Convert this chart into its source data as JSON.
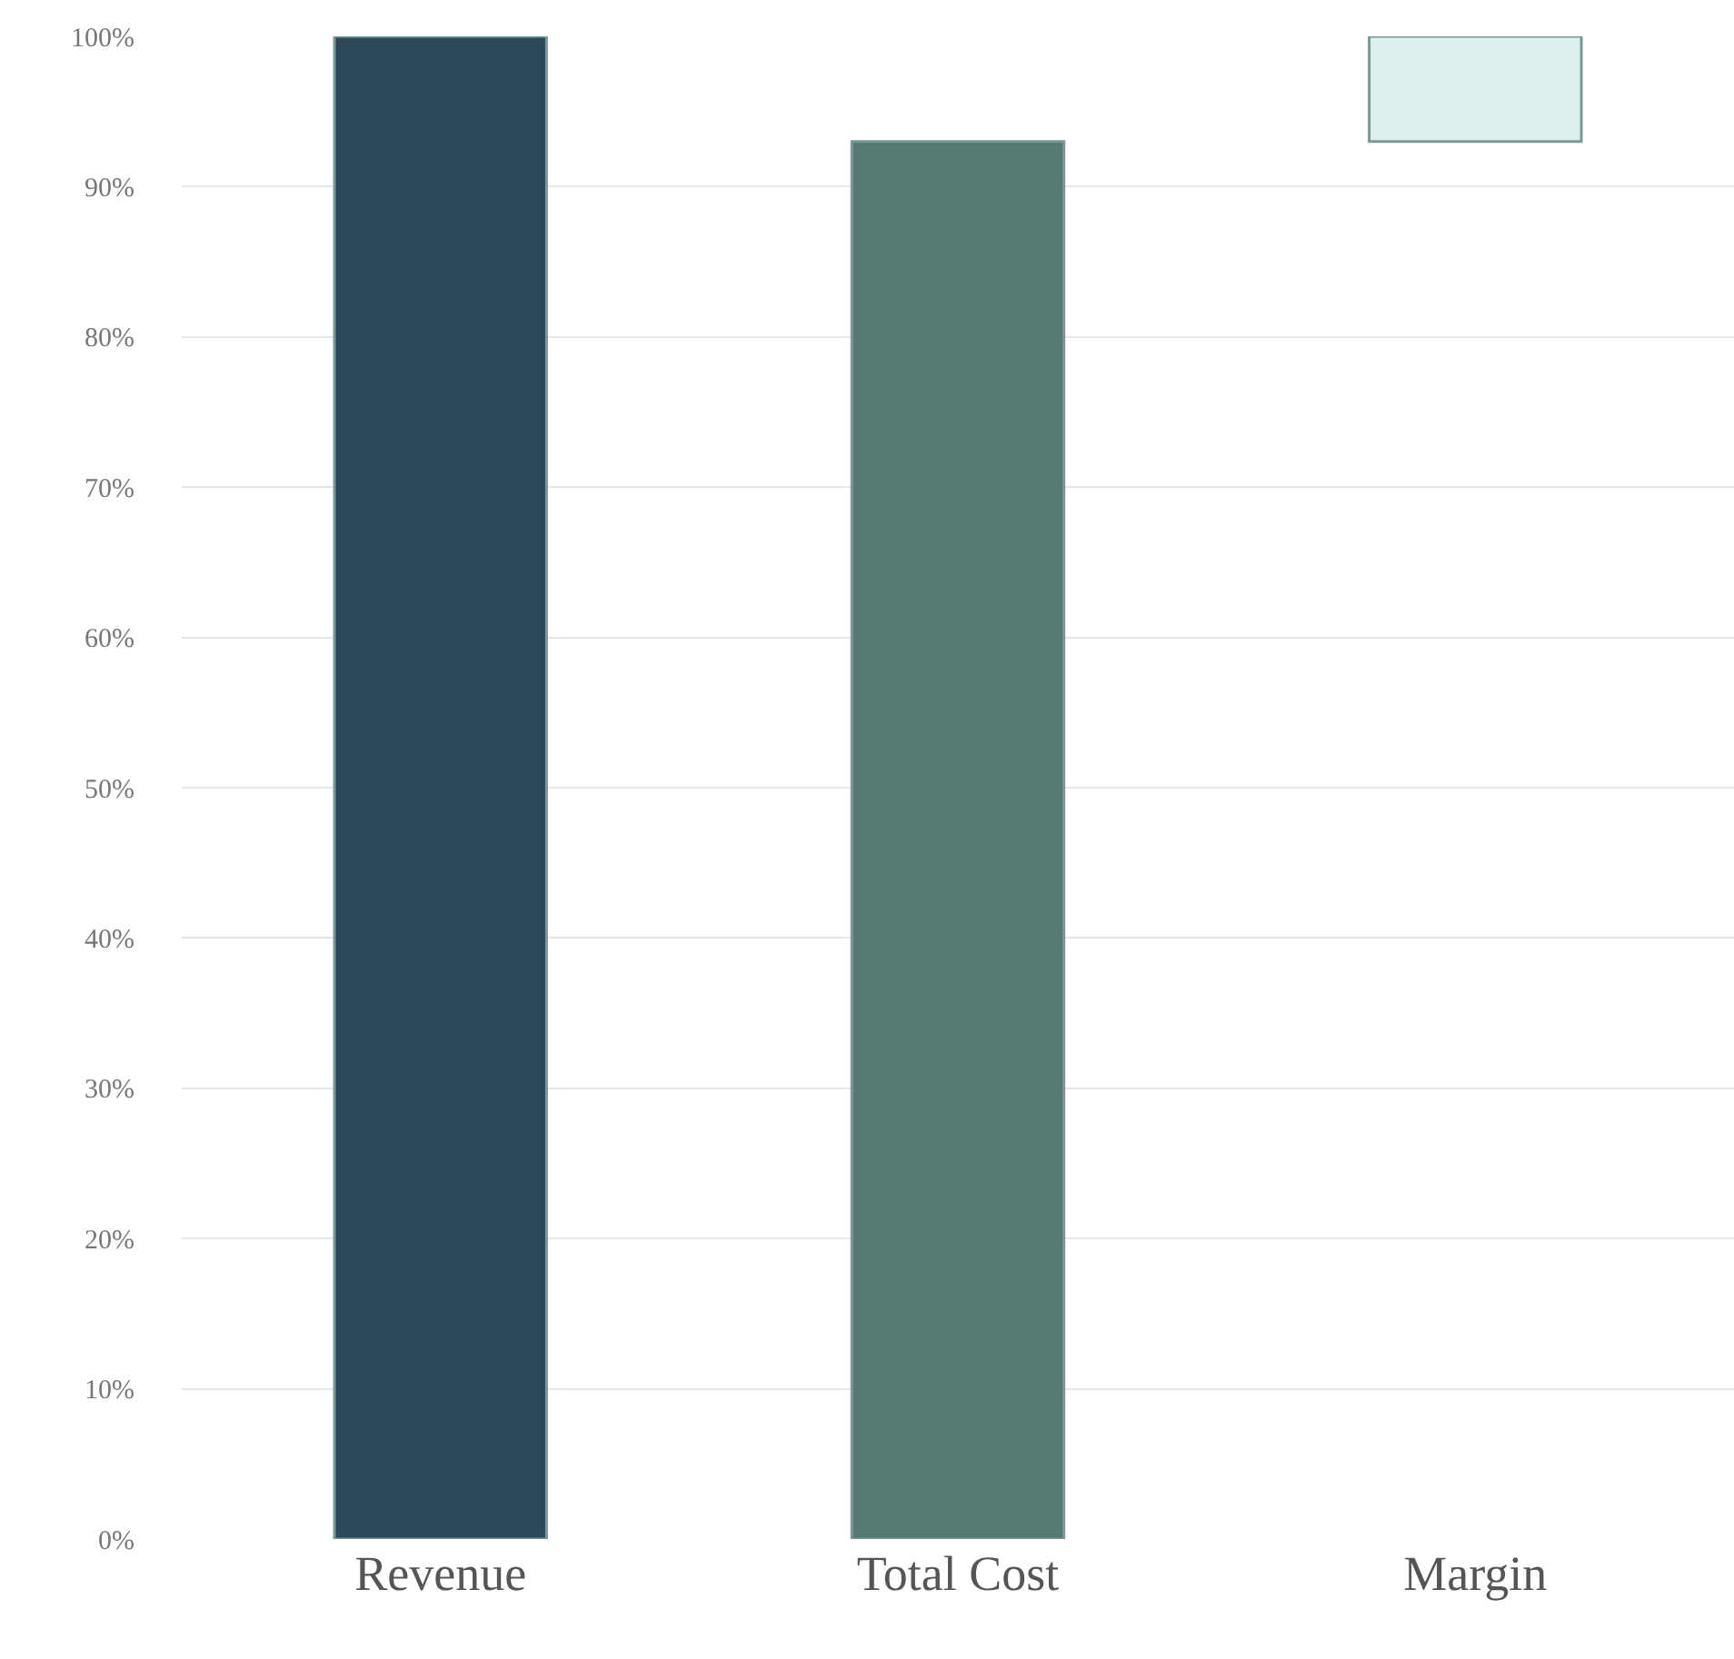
{
  "chart_data": {
    "type": "bar",
    "categories": [
      "Revenue",
      "Total Cost",
      "Margin"
    ],
    "values": [
      100,
      93,
      7
    ],
    "base": [
      0,
      0,
      93
    ],
    "colors": [
      "#2d4858",
      "#557a74",
      "#ddf0f0"
    ],
    "ylim": [
      0,
      100
    ],
    "yticks": [
      {
        "value": 0,
        "label": "0%"
      },
      {
        "value": 10,
        "label": "10%"
      },
      {
        "value": 20,
        "label": "20%"
      },
      {
        "value": 30,
        "label": "30%"
      },
      {
        "value": 40,
        "label": "40%"
      },
      {
        "value": 50,
        "label": "50%"
      },
      {
        "value": 60,
        "label": "60%"
      },
      {
        "value": 70,
        "label": "70%"
      },
      {
        "value": 80,
        "label": "80%"
      },
      {
        "value": 90,
        "label": "90%"
      },
      {
        "value": 100,
        "label": "100%"
      }
    ],
    "grid": "y"
  }
}
